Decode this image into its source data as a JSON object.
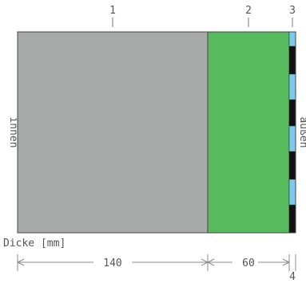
{
  "layers": [
    {
      "number": "1",
      "thickness_mm": 140,
      "color": "#a8aaaa"
    },
    {
      "number": "2",
      "thickness_mm": 60,
      "color": "#57bb5e"
    },
    {
      "number": "3",
      "color": "#7ccbe8"
    }
  ],
  "side_labels": {
    "inside": "innen",
    "outside": "außen"
  },
  "dimension": {
    "axis_label": "Dicke [mm]",
    "segments": [
      "140",
      "60"
    ],
    "end_marker": "4"
  }
}
